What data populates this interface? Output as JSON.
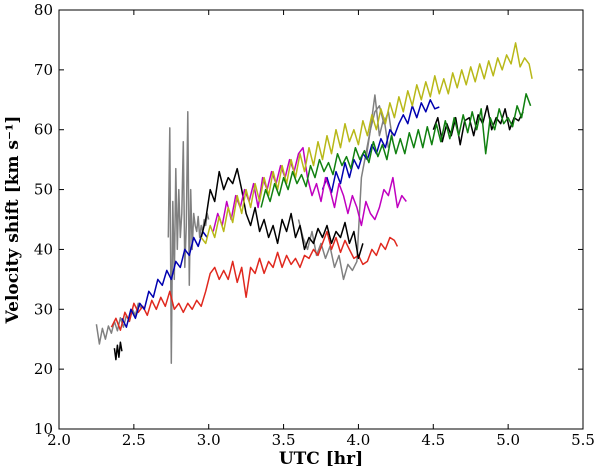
{
  "chart_data": {
    "type": "line",
    "xlabel": "UTC [hr]",
    "ylabel": "Velocity shift [km s⁻¹]",
    "xlim": [
      2.0,
      5.5
    ],
    "ylim": [
      10,
      80
    ],
    "xticks": [
      2.0,
      2.5,
      3.0,
      3.5,
      4.0,
      4.5,
      5.0,
      5.5
    ],
    "xtick_labels": [
      "2.0",
      "2.5",
      "3.0",
      "3.5",
      "4.0",
      "4.5",
      "5.0",
      "5.5"
    ],
    "yticks": [
      10,
      20,
      30,
      40,
      50,
      60,
      70,
      80
    ],
    "ytick_labels": [
      "10",
      "20",
      "30",
      "40",
      "50",
      "60",
      "70",
      "80"
    ],
    "grid": false,
    "series": [
      {
        "color": "#808080",
        "x": [
          2.25,
          2.27,
          2.29,
          2.31,
          2.33,
          2.35,
          2.37,
          2.39,
          2.41,
          2.43,
          2.45,
          2.47,
          2.49,
          2.51,
          2.53,
          2.55
        ],
        "y": [
          27.5,
          24.2,
          26.8,
          25.0,
          27.2,
          26.0,
          28.0,
          26.4,
          28.6,
          27.0,
          29.0,
          28.0,
          30.0,
          29.0,
          31.0,
          30.2
        ]
      },
      {
        "color": "#808080",
        "x": [
          2.73,
          2.74,
          2.75,
          2.76,
          2.77,
          2.78,
          2.79,
          2.8,
          2.81,
          2.82,
          2.83,
          2.84,
          2.85,
          2.86,
          2.87,
          2.88,
          2.89,
          2.9,
          2.91,
          2.92,
          2.93,
          2.94,
          2.95,
          2.96,
          2.97,
          2.98,
          2.99,
          3.0
        ],
        "y": [
          42,
          60.3,
          21.0,
          48.0,
          35.0,
          53.5,
          40.0,
          50.0,
          42.0,
          46.0,
          58.0,
          37.0,
          44.0,
          63.0,
          34.0,
          50.0,
          40.0,
          46.0,
          44.0,
          43.0,
          45.5,
          42.0,
          44.0,
          43.0,
          45.0,
          44.0,
          46.0,
          45.0
        ]
      },
      {
        "color": "#808080",
        "x": [
          3.6,
          3.63,
          3.66,
          3.69,
          3.72,
          3.75,
          3.78,
          3.81,
          3.84,
          3.87,
          3.9,
          3.93,
          3.96,
          3.99,
          4.02,
          4.05,
          4.08,
          4.11,
          4.14,
          4.17,
          4.2,
          4.23
        ],
        "y": [
          45.0,
          42.0,
          40.0,
          43.0,
          39.0,
          41.0,
          38.5,
          40.5,
          37.0,
          39.0,
          35.0,
          37.5,
          36.5,
          38.0,
          52.0,
          56.0,
          60.0,
          63.0,
          64.0,
          61.0,
          63.0,
          58.0
        ]
      },
      {
        "color": "#808080",
        "x": [
          4.05,
          4.08,
          4.11,
          4.14,
          4.17,
          4.2
        ],
        "y": [
          55.0,
          60.0,
          65.8,
          59.0,
          62.0,
          57.0
        ]
      },
      {
        "color": "#e0281e",
        "x": [
          2.35,
          2.38,
          2.41,
          2.44,
          2.47,
          2.5,
          2.53,
          2.56,
          2.59,
          2.62,
          2.65,
          2.68,
          2.71,
          2.74,
          2.77,
          2.8,
          2.83,
          2.86,
          2.89,
          2.92,
          2.95,
          2.98,
          3.01,
          3.04,
          3.07,
          3.1,
          3.13,
          3.16,
          3.19,
          3.22,
          3.25,
          3.28,
          3.31,
          3.34,
          3.37,
          3.4,
          3.43,
          3.46,
          3.49,
          3.52,
          3.55,
          3.58,
          3.61,
          3.64,
          3.67,
          3.7,
          3.73,
          3.76,
          3.79,
          3.82,
          3.85,
          3.88,
          3.91,
          3.94,
          3.97,
          4.0,
          4.03,
          4.06,
          4.09,
          4.12,
          4.15,
          4.18,
          4.21,
          4.24,
          4.26
        ],
        "y": [
          27.0,
          28.5,
          26.5,
          29.5,
          28.0,
          31.0,
          29.5,
          30.5,
          29.0,
          31.5,
          30.0,
          32.0,
          30.5,
          33.0,
          30.0,
          31.0,
          29.5,
          31.0,
          30.0,
          31.5,
          30.5,
          33.0,
          36.0,
          37.0,
          35.0,
          36.5,
          35.0,
          38.0,
          34.5,
          37.0,
          32.0,
          37.0,
          36.0,
          38.5,
          36.0,
          38.0,
          37.0,
          39.5,
          37.0,
          39.0,
          37.5,
          38.5,
          37.0,
          39.0,
          38.5,
          40.0,
          39.0,
          41.0,
          43.0,
          40.0,
          42.0,
          39.5,
          41.5,
          40.0,
          38.5,
          39.0,
          37.5,
          38.0,
          40.0,
          39.0,
          41.0,
          40.0,
          42.0,
          41.5,
          40.5
        ]
      },
      {
        "color": "#0000b0",
        "x": [
          2.42,
          2.45,
          2.48,
          2.51,
          2.54,
          2.57,
          2.6,
          2.63,
          2.66,
          2.69,
          2.72,
          2.75,
          2.78,
          2.81,
          2.84,
          2.87,
          2.9,
          2.93,
          2.96,
          2.99
        ],
        "y": [
          28.5,
          27.0,
          30.0,
          28.5,
          31.0,
          30.0,
          33.0,
          32.0,
          35.0,
          34.0,
          36.5,
          35.0,
          38.0,
          37.0,
          40.0,
          39.0,
          42.0,
          40.5,
          43.0,
          42.0
        ]
      },
      {
        "color": "#0000b0",
        "x": [
          3.76,
          3.79,
          3.82,
          3.85,
          3.88,
          3.91,
          3.94,
          3.97,
          4.0,
          4.03,
          4.06,
          4.09,
          4.12,
          4.15,
          4.18,
          4.21,
          4.24,
          4.27,
          4.3,
          4.33,
          4.36,
          4.39,
          4.42,
          4.45,
          4.48,
          4.51,
          4.54
        ],
        "y": [
          50.0,
          52.0,
          49.5,
          53.0,
          51.0,
          54.5,
          52.0,
          55.0,
          53.5,
          56.0,
          55.0,
          57.5,
          56.0,
          58.5,
          57.0,
          60.0,
          59.0,
          61.0,
          62.5,
          61.0,
          64.0,
          62.0,
          64.5,
          63.0,
          65.0,
          63.5,
          63.8
        ]
      },
      {
        "color": "#000000",
        "x": [
          2.37,
          2.38,
          2.39,
          2.4,
          2.41,
          2.42
        ],
        "y": [
          23.5,
          21.6,
          24.0,
          22.0,
          24.5,
          23.0
        ]
      },
      {
        "color": "#000000",
        "x": [
          2.95,
          2.98,
          3.01,
          3.04,
          3.07,
          3.1,
          3.13,
          3.16,
          3.19,
          3.22,
          3.25,
          3.28,
          3.31,
          3.34,
          3.37,
          3.4,
          3.43,
          3.46,
          3.49,
          3.52,
          3.55,
          3.58,
          3.61,
          3.64,
          3.67,
          3.7,
          3.73,
          3.76,
          3.79,
          3.82,
          3.85,
          3.88,
          3.91,
          3.94,
          3.97,
          4.0,
          4.03
        ],
        "y": [
          42.0,
          45.0,
          50.0,
          48.0,
          53.0,
          50.0,
          52.0,
          51.0,
          53.5,
          50.0,
          46.0,
          44.0,
          47.0,
          43.0,
          45.0,
          42.0,
          44.0,
          41.0,
          45.0,
          43.0,
          46.0,
          42.0,
          44.0,
          40.0,
          42.0,
          41.0,
          43.5,
          42.0,
          44.0,
          41.0,
          43.0,
          42.0,
          44.5,
          41.0,
          43.0,
          38.5,
          41.0
        ]
      },
      {
        "color": "#000000",
        "x": [
          4.5,
          4.53,
          4.56,
          4.59,
          4.62,
          4.65,
          4.68,
          4.71,
          4.74,
          4.77,
          4.8,
          4.83,
          4.86,
          4.89,
          4.92,
          4.95,
          4.98,
          5.01,
          5.04,
          5.07,
          5.1
        ],
        "y": [
          60.0,
          62.0,
          58.0,
          61.0,
          59.0,
          62.0,
          57.5,
          61.5,
          62.0,
          59.0,
          62.5,
          61.0,
          64.0,
          60.0,
          62.0,
          61.0,
          63.5,
          60.0,
          62.0,
          61.5,
          63.0
        ]
      },
      {
        "color": "#c000c0",
        "x": [
          3.03,
          3.06,
          3.09,
          3.12,
          3.15,
          3.18,
          3.21,
          3.24,
          3.27,
          3.3,
          3.33,
          3.36,
          3.39,
          3.42,
          3.45,
          3.48,
          3.51,
          3.54,
          3.57,
          3.6,
          3.63,
          3.66,
          3.69,
          3.72,
          3.75,
          3.78,
          3.81,
          3.84,
          3.87,
          3.9,
          3.93,
          3.96,
          3.99,
          4.02,
          4.05,
          4.08,
          4.11,
          4.14,
          4.17,
          4.2,
          4.23,
          4.26,
          4.29,
          4.32
        ],
        "y": [
          43.0,
          46.0,
          44.0,
          48.0,
          45.0,
          49.0,
          47.0,
          50.0,
          48.0,
          51.0,
          47.0,
          52.0,
          50.0,
          53.0,
          51.0,
          54.0,
          52.0,
          55.0,
          53.0,
          56.0,
          57.0,
          52.0,
          49.0,
          51.0,
          48.0,
          52.0,
          50.0,
          47.0,
          51.0,
          49.0,
          46.0,
          49.0,
          47.0,
          44.0,
          48.0,
          46.0,
          45.0,
          47.0,
          50.0,
          49.0,
          52.0,
          47.0,
          49.0,
          48.0
        ]
      },
      {
        "color": "#b8b818",
        "x": [
          2.95,
          2.98,
          3.01,
          3.04,
          3.07,
          3.1,
          3.13,
          3.16,
          3.19,
          3.22,
          3.25,
          3.28,
          3.31,
          3.34,
          3.37,
          3.4,
          3.43,
          3.46,
          3.49,
          3.52,
          3.55,
          3.58,
          3.61,
          3.64,
          3.67,
          3.7,
          3.73,
          3.76,
          3.79,
          3.82,
          3.85,
          3.88,
          3.91,
          3.94,
          3.97,
          4.0,
          4.03,
          4.06,
          4.09,
          4.12,
          4.15,
          4.18,
          4.21,
          4.24,
          4.27,
          4.3,
          4.33,
          4.36,
          4.39,
          4.42,
          4.45,
          4.48,
          4.51,
          4.54,
          4.57,
          4.6,
          4.63,
          4.66,
          4.69,
          4.72,
          4.75,
          4.78,
          4.81,
          4.84,
          4.87,
          4.9,
          4.93,
          4.96,
          4.99,
          5.02,
          5.05,
          5.08,
          5.11,
          5.14,
          5.16
        ],
        "y": [
          42.0,
          41.0,
          44.0,
          42.0,
          45.5,
          43.0,
          47.0,
          44.5,
          49.0,
          46.0,
          50.0,
          47.0,
          51.0,
          48.0,
          52.0,
          49.0,
          53.0,
          50.0,
          54.0,
          51.0,
          55.0,
          52.0,
          56.0,
          53.0,
          57.0,
          54.0,
          58.0,
          55.0,
          59.0,
          56.0,
          60.0,
          57.0,
          61.0,
          58.0,
          60.0,
          57.5,
          61.5,
          59.0,
          62.5,
          60.0,
          63.5,
          61.0,
          64.5,
          62.0,
          65.5,
          63.0,
          66.5,
          64.0,
          67.5,
          65.0,
          68.0,
          65.5,
          69.0,
          66.0,
          68.5,
          66.0,
          69.5,
          67.0,
          70.0,
          67.5,
          70.5,
          68.0,
          71.0,
          68.5,
          71.5,
          69.0,
          72.0,
          70.0,
          72.5,
          71.0,
          74.5,
          70.5,
          72.0,
          71.0,
          68.5
        ]
      },
      {
        "color": "#108010",
        "x": [
          3.35,
          3.38,
          3.41,
          3.44,
          3.47,
          3.5,
          3.53,
          3.56,
          3.59,
          3.62,
          3.65,
          3.68,
          3.71,
          3.74,
          3.77,
          3.8,
          3.83,
          3.86,
          3.89,
          3.92,
          3.95,
          3.98,
          4.01,
          4.04,
          4.07,
          4.1,
          4.13,
          4.16,
          4.19,
          4.22,
          4.25,
          4.28,
          4.31,
          4.34,
          4.37,
          4.4,
          4.43,
          4.46,
          4.49,
          4.52,
          4.55,
          4.58,
          4.61,
          4.64,
          4.67,
          4.7,
          4.73,
          4.76,
          4.79,
          4.82,
          4.85,
          4.88,
          4.91,
          4.94,
          4.97,
          5.0,
          5.03,
          5.06,
          5.09,
          5.12,
          5.15
        ],
        "y": [
          47.0,
          50.0,
          48.0,
          51.0,
          49.0,
          52.0,
          50.0,
          53.0,
          51.0,
          52.5,
          50.5,
          54.0,
          52.0,
          55.0,
          53.0,
          54.5,
          52.5,
          56.0,
          54.0,
          55.5,
          53.5,
          57.0,
          55.0,
          56.5,
          54.5,
          58.0,
          55.5,
          57.5,
          55.0,
          59.0,
          56.0,
          58.5,
          56.0,
          59.5,
          57.0,
          60.0,
          57.0,
          60.5,
          57.5,
          61.0,
          58.0,
          61.5,
          58.5,
          62.0,
          59.0,
          62.5,
          59.5,
          63.0,
          60.0,
          63.5,
          56.0,
          62.0,
          60.0,
          63.5,
          61.0,
          62.0,
          60.5,
          64.0,
          62.0,
          66.0,
          64.0
        ]
      }
    ]
  }
}
